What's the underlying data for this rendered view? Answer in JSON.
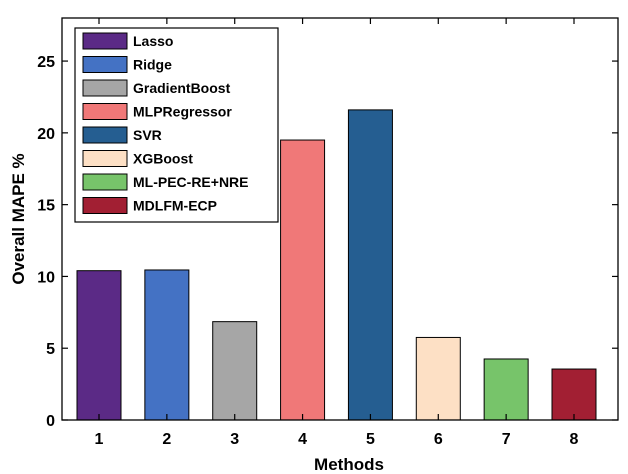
{
  "chart_data": {
    "type": "bar",
    "categories": [
      "1",
      "2",
      "3",
      "4",
      "5",
      "6",
      "7",
      "8"
    ],
    "series": [
      {
        "name": "Lasso",
        "category": "1",
        "value": 10.4,
        "color": "#5b2a86"
      },
      {
        "name": "Ridge",
        "category": "2",
        "value": 10.45,
        "color": "#4472c4"
      },
      {
        "name": "GradientBoost",
        "category": "3",
        "value": 6.85,
        "color": "#a6a6a6"
      },
      {
        "name": "MLPRegressor",
        "category": "4",
        "value": 19.5,
        "color": "#f07878"
      },
      {
        "name": "SVR",
        "category": "5",
        "value": 21.6,
        "color": "#255e91"
      },
      {
        "name": "XGBoost",
        "category": "6",
        "value": 5.75,
        "color": "#fde0c5"
      },
      {
        "name": "ML-PEC-RE+NRE",
        "category": "7",
        "value": 4.25,
        "color": "#77c46a"
      },
      {
        "name": "MDLFM-ECP",
        "category": "8",
        "value": 3.55,
        "color": "#a21f33"
      }
    ],
    "xlabel": "Methods",
    "ylabel": "Overall MAPE %",
    "ylim": [
      0,
      28
    ],
    "yticks": [
      0,
      5,
      10,
      15,
      20,
      25
    ],
    "grid": false,
    "legend_position": "top-left"
  }
}
